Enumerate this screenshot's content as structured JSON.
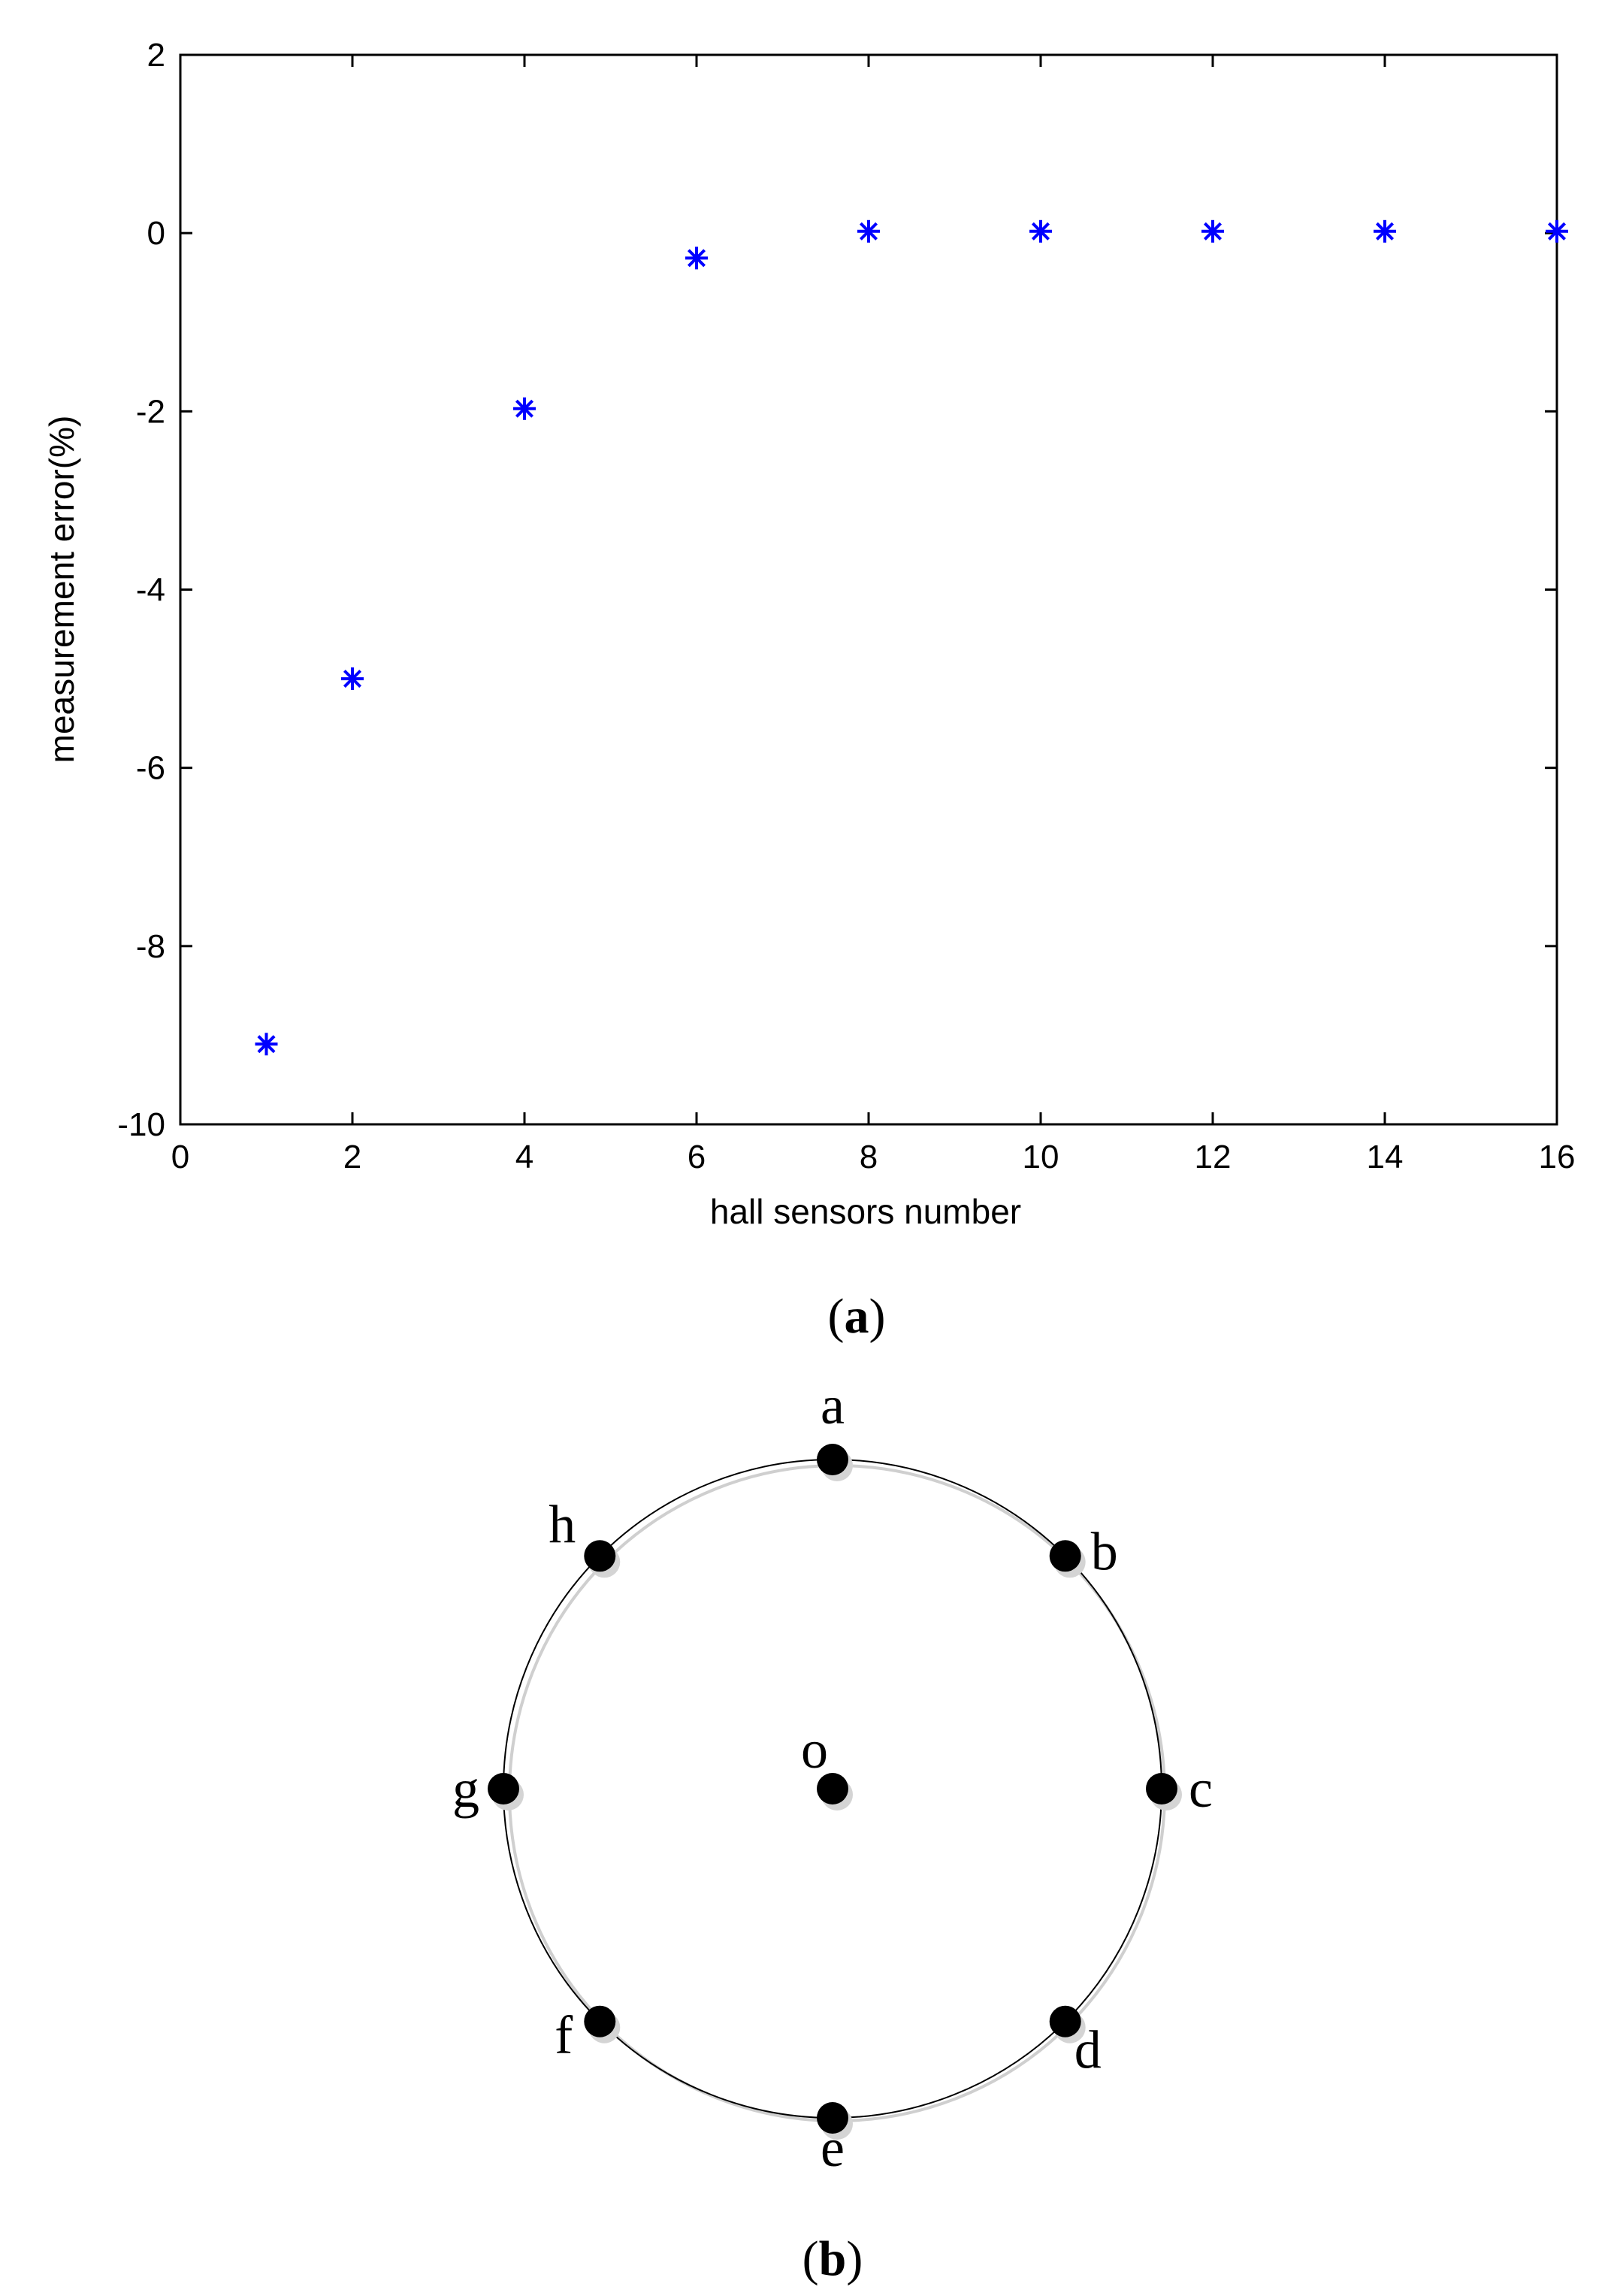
{
  "chart_data": {
    "type": "scatter",
    "xlabel": "hall sensors number",
    "ylabel": "measurement error(%)",
    "xlim": [
      0,
      16
    ],
    "ylim": [
      -10,
      2
    ],
    "xticks": [
      0,
      2,
      4,
      6,
      8,
      10,
      12,
      14,
      16
    ],
    "yticks": [
      2,
      0,
      -2,
      -4,
      -6,
      -8,
      -10
    ],
    "grid": false,
    "marker": "asterisk",
    "marker_color": "#0000ff",
    "points": [
      {
        "x": 1,
        "y": -9.1
      },
      {
        "x": 2,
        "y": -5.0
      },
      {
        "x": 4,
        "y": -1.97
      },
      {
        "x": 6,
        "y": -0.28
      },
      {
        "x": 8,
        "y": 0.02
      },
      {
        "x": 10,
        "y": 0.02
      },
      {
        "x": 12,
        "y": 0.02
      },
      {
        "x": 14,
        "y": 0.02
      },
      {
        "x": 16,
        "y": 0.02
      }
    ]
  },
  "captions": {
    "a": {
      "open": "(",
      "letter": "a",
      "close": ")"
    },
    "b": {
      "open": "(",
      "letter": "b",
      "close": ")"
    }
  },
  "sensor_layout": {
    "center_label": "o",
    "nodes": [
      "a",
      "b",
      "c",
      "d",
      "e",
      "f",
      "g",
      "h"
    ]
  }
}
